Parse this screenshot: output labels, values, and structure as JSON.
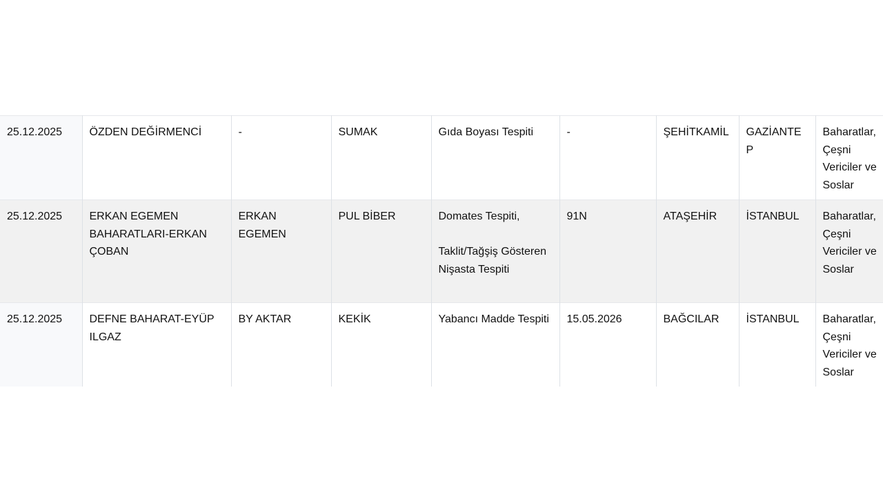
{
  "table": {
    "rows": [
      {
        "date": "25.12.2025",
        "company": "ÖZDEN DEĞİRMENCİ",
        "brand": "-",
        "product": "SUMAK",
        "finding": "Gıda Boyası Tespiti",
        "lot": "-",
        "district": "ŞEHİTKAMİL",
        "city": "GAZİANTEP",
        "category": "Baharatlar, Çeşni Vericiler ve Soslar"
      },
      {
        "date": "25.12.2025",
        "company": "ERKAN EGEMEN BAHARATLARI-ERKAN ÇOBAN",
        "brand": "ERKAN EGEMEN",
        "product": "PUL BİBER",
        "finding": "Domates Tespiti,\n\nTaklit/Tağşiş Gösteren Nişasta Tespiti",
        "lot": "91N",
        "district": "ATAŞEHİR",
        "city": "İSTANBUL",
        "category": "Baharatlar, Çeşni Vericiler ve Soslar"
      },
      {
        "date": "25.12.2025",
        "company": "DEFNE BAHARAT-EYÜP ILGAZ",
        "brand": "BY AKTAR",
        "product": "KEKİK",
        "finding": "Yabancı Madde Tespiti",
        "lot": "15.05.2026",
        "district": "BAĞCILAR",
        "city": "İSTANBUL",
        "category": "Baharatlar, Çeşni Vericiler ve Soslar"
      }
    ]
  }
}
